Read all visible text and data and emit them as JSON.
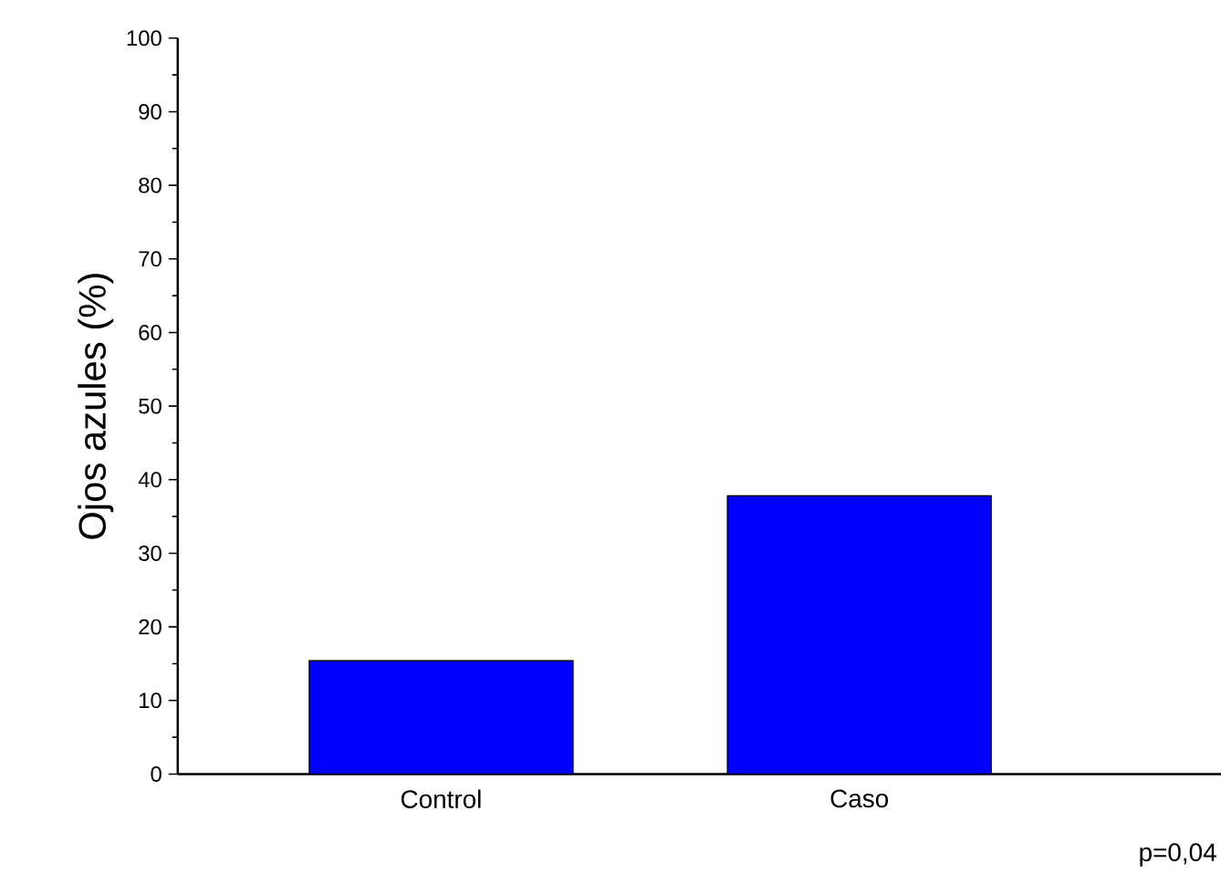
{
  "chart_data": {
    "type": "bar",
    "ylabel": "Ojos azules (%)",
    "categories": [
      "Control",
      "Caso"
    ],
    "values": [
      15.4,
      37.8
    ],
    "color": "#0000ff",
    "ylim": [
      0,
      100
    ],
    "yticks": [
      0,
      10,
      20,
      30,
      40,
      50,
      60,
      70,
      80,
      90,
      100
    ],
    "grid": false,
    "annotations": [
      "p=0,04"
    ]
  }
}
